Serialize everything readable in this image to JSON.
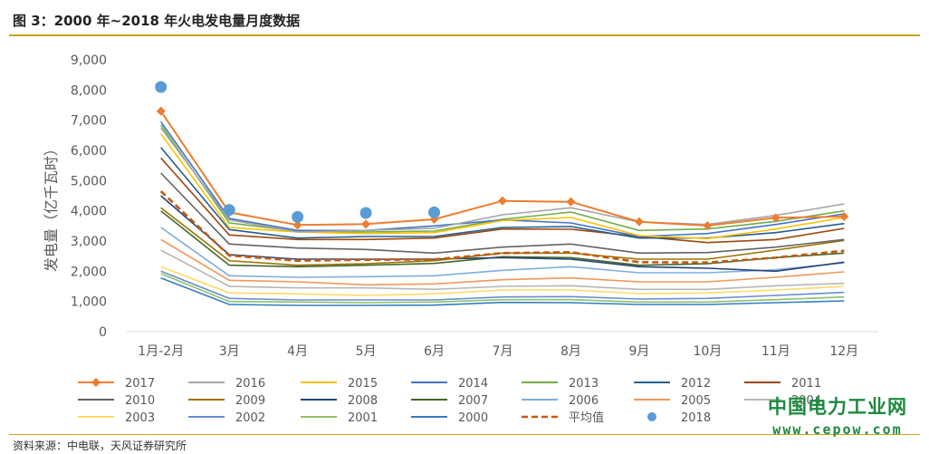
{
  "title": "图 3：2000 年~2018 年火电发电量月度数据",
  "source": "资料来源：中电联，天风证券研究所",
  "watermark": {
    "line1": "中国电力工业网",
    "line2": "www.cepow.com"
  },
  "chart_data": {
    "type": "line",
    "title": "",
    "xlabel": "",
    "ylabel": "发电量（亿千瓦时）",
    "ylim": [
      0,
      9000
    ],
    "yticks": [
      0,
      1000,
      2000,
      3000,
      4000,
      5000,
      6000,
      7000,
      8000,
      9000
    ],
    "yticklabels": [
      "0",
      "1,000",
      "2,000",
      "3,000",
      "4,000",
      "5,000",
      "6,000",
      "7,000",
      "8,000",
      "9,000"
    ],
    "categories": [
      "1月-2月",
      "3月",
      "4月",
      "5月",
      "6月",
      "7月",
      "8月",
      "9月",
      "10月",
      "11月",
      "12月"
    ],
    "grid": false,
    "legend_position": "bottom",
    "series": [
      {
        "name": "2017",
        "color": "#ed7d31",
        "style": "line-diamond",
        "values": [
          7300,
          3950,
          3530,
          3560,
          3720,
          4330,
          4300,
          3640,
          3510,
          3770,
          3810
        ]
      },
      {
        "name": "2016",
        "color": "#a5a5a5",
        "style": "line",
        "values": [
          6750,
          3700,
          3300,
          3350,
          3420,
          3870,
          4100,
          3630,
          3550,
          3850,
          4230
        ]
      },
      {
        "name": "2015",
        "color": "#ffc000",
        "style": "line",
        "values": [
          6550,
          3450,
          3300,
          3250,
          3280,
          3680,
          3780,
          3180,
          3080,
          3400,
          3780
        ]
      },
      {
        "name": "2014",
        "color": "#4472c4",
        "style": "line",
        "values": [
          6950,
          3750,
          3350,
          3350,
          3500,
          3700,
          3600,
          3150,
          3250,
          3550,
          3900
        ]
      },
      {
        "name": "2013",
        "color": "#70ad47",
        "style": "line",
        "values": [
          6850,
          3600,
          3320,
          3300,
          3330,
          3720,
          3960,
          3350,
          3400,
          3650,
          4000
        ]
      },
      {
        "name": "2012",
        "color": "#255e91",
        "style": "line",
        "values": [
          6100,
          3380,
          3100,
          3150,
          3150,
          3450,
          3480,
          3100,
          3100,
          3280,
          3580
        ]
      },
      {
        "name": "2011",
        "color": "#9e480e",
        "style": "line",
        "values": [
          5750,
          3200,
          3050,
          3050,
          3100,
          3400,
          3390,
          3150,
          2950,
          3050,
          3420
        ]
      },
      {
        "name": "2010",
        "color": "#636363",
        "style": "line",
        "values": [
          5250,
          2900,
          2770,
          2720,
          2600,
          2800,
          2900,
          2600,
          2620,
          2800,
          3050
        ]
      },
      {
        "name": "2009",
        "color": "#997300",
        "style": "line",
        "values": [
          4100,
          2350,
          2200,
          2250,
          2350,
          2600,
          2600,
          2400,
          2400,
          2700,
          3020
        ]
      },
      {
        "name": "2008",
        "color": "#264478",
        "style": "line",
        "values": [
          4500,
          2550,
          2400,
          2400,
          2400,
          2450,
          2400,
          2150,
          2100,
          2000,
          2300
        ]
      },
      {
        "name": "2007",
        "color": "#43682b",
        "style": "line",
        "values": [
          4000,
          2200,
          2150,
          2200,
          2260,
          2480,
          2450,
          2200,
          2250,
          2450,
          2600
        ]
      },
      {
        "name": "2006",
        "color": "#7cafdd",
        "style": "line",
        "values": [
          3450,
          1850,
          1800,
          1820,
          1850,
          2030,
          2150,
          1950,
          1950,
          2050,
          2280
        ]
      },
      {
        "name": "2005",
        "color": "#f1975a",
        "style": "line",
        "values": [
          3050,
          1700,
          1650,
          1550,
          1580,
          1720,
          1780,
          1650,
          1650,
          1800,
          1980
        ]
      },
      {
        "name": "2004",
        "color": "#b7b7b7",
        "style": "line",
        "values": [
          2700,
          1500,
          1450,
          1450,
          1400,
          1500,
          1520,
          1400,
          1400,
          1520,
          1600
        ]
      },
      {
        "name": "2003",
        "color": "#ffd966",
        "style": "line",
        "values": [
          2150,
          1280,
          1250,
          1200,
          1250,
          1380,
          1380,
          1260,
          1280,
          1380,
          1500
        ]
      },
      {
        "name": "2002",
        "color": "#698ed0",
        "style": "line",
        "values": [
          2000,
          1100,
          1050,
          1050,
          1050,
          1150,
          1160,
          1080,
          1100,
          1200,
          1300
        ]
      },
      {
        "name": "2001",
        "color": "#8cc168",
        "style": "line",
        "values": [
          1920,
          1000,
          980,
          960,
          980,
          1060,
          1060,
          980,
          980,
          1060,
          1150
        ]
      },
      {
        "name": "2000",
        "color": "#327dc2",
        "style": "line",
        "values": [
          1780,
          900,
          870,
          870,
          880,
          970,
          960,
          900,
          900,
          960,
          1020
        ]
      },
      {
        "name": "平均值",
        "color": "#c55a11",
        "style": "dashed",
        "values": [
          4650,
          2520,
          2350,
          2380,
          2390,
          2600,
          2630,
          2300,
          2290,
          2450,
          2680
        ]
      },
      {
        "name": "2018",
        "color": "#5b9bd5",
        "style": "dots",
        "values": [
          8100,
          4030,
          3800,
          3930,
          3950,
          null,
          null,
          null,
          null,
          null,
          null
        ]
      }
    ]
  }
}
